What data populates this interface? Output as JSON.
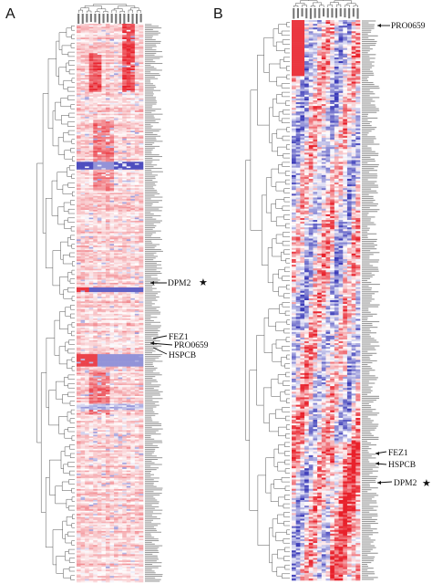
{
  "panels": [
    {
      "letter": "A",
      "annotations": [
        {
          "gene": "DPM2",
          "starred": true
        },
        {
          "gene": "FEZ1",
          "starred": false
        },
        {
          "gene": "PRO0659",
          "starred": false
        },
        {
          "gene": "HSPCB",
          "starred": false
        }
      ]
    },
    {
      "letter": "B",
      "annotations": [
        {
          "gene": "PRO0659",
          "starred": false
        },
        {
          "gene": "FEZ1",
          "starred": false
        },
        {
          "gene": "HSPCB",
          "starred": false
        },
        {
          "gene": "DPM2",
          "starred": true
        }
      ]
    }
  ],
  "star_symbol": "★",
  "colors": {
    "high": "#e8202a",
    "low": "#3a3ab8",
    "neutral": "#fbe4e6",
    "tree": "#555555"
  }
}
